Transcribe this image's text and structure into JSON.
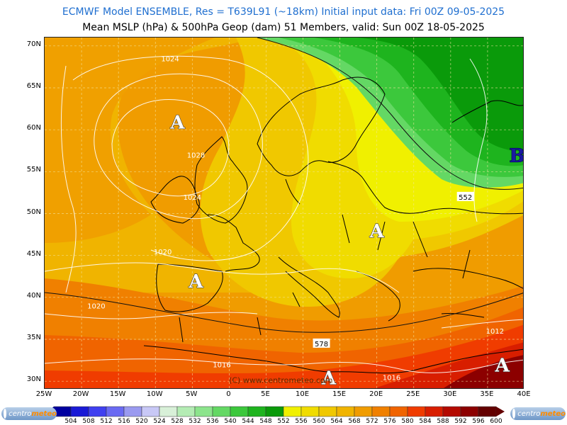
{
  "header": {
    "line1": "ECMWF Model ENSEMBLE, Res = T639L91 (~18km)  Initial input data: Fri 00Z 09-05-2025",
    "line2": "Mean MSLP (hPa) & 500hPa Geop (dam)    51 Members, valid: Sun 00Z 18-05-2025"
  },
  "axes": {
    "lat_labels": [
      "70N",
      "65N",
      "60N",
      "55N",
      "50N",
      "45N",
      "40N",
      "35N",
      "30N"
    ],
    "lon_labels": [
      "25W",
      "20W",
      "15W",
      "10W",
      "5W",
      "0",
      "5E",
      "10E",
      "15E",
      "20E",
      "25E",
      "30E",
      "35E",
      "40E"
    ]
  },
  "map": {
    "projection_extent": {
      "lon": [
        -25,
        40
      ],
      "lat": [
        29,
        71
      ]
    },
    "pressure_centers": [
      {
        "label": "A",
        "meaning": "high",
        "lon": -7,
        "lat": 61
      },
      {
        "label": "A",
        "meaning": "high",
        "lon": 20,
        "lat": 48
      },
      {
        "label": "A",
        "meaning": "high",
        "lon": -4.5,
        "lat": 42
      },
      {
        "label": "A",
        "meaning": "high",
        "lon": 13.5,
        "lat": 30.5
      },
      {
        "label": "A",
        "meaning": "high",
        "lon": 37,
        "lat": 32
      },
      {
        "label": "B",
        "meaning": "low",
        "lon": 39,
        "lat": 57
      }
    ],
    "isobar_labels": [
      {
        "text": "1024",
        "lon": -8,
        "lat": 68.5
      },
      {
        "text": "1028",
        "lon": -4.5,
        "lat": 57
      },
      {
        "text": "1024",
        "lon": -5,
        "lat": 52
      },
      {
        "text": "1020",
        "lon": -9,
        "lat": 45.5
      },
      {
        "text": "1020",
        "lon": -18,
        "lat": 39
      },
      {
        "text": "1016",
        "lon": -1,
        "lat": 32
      },
      {
        "text": "1016",
        "lon": 22,
        "lat": 30.5
      },
      {
        "text": "1012",
        "lon": 36,
        "lat": 36
      }
    ],
    "geopotential_labels": [
      {
        "text": "552",
        "lon": 32,
        "lat": 52
      },
      {
        "text": "578",
        "lon": 12.5,
        "lat": 34.5
      }
    ],
    "watermark": "(C) www.centrometeo.com"
  },
  "colorbar": {
    "values": [
      "504",
      "508",
      "512",
      "516",
      "520",
      "524",
      "528",
      "532",
      "536",
      "540",
      "544",
      "548",
      "552",
      "556",
      "560",
      "564",
      "568",
      "572",
      "576",
      "580",
      "584",
      "588",
      "592",
      "596",
      "600"
    ],
    "colors": [
      "#0000a0",
      "#1a1ad6",
      "#4040f0",
      "#6a6af2",
      "#9a9af0",
      "#c8c8f6",
      "#d8f0d8",
      "#b4ecb4",
      "#8ce48c",
      "#64d864",
      "#3cc83c",
      "#1eb41e",
      "#0a9a0a",
      "#f0f000",
      "#f0dc00",
      "#f0c800",
      "#f0b400",
      "#f09c00",
      "#f08000",
      "#f06400",
      "#f03c00",
      "#d81e00",
      "#b40a00",
      "#8c0000",
      "#640000"
    ]
  },
  "logos": {
    "brand_left": "centro",
    "brand_right": "meteo"
  }
}
